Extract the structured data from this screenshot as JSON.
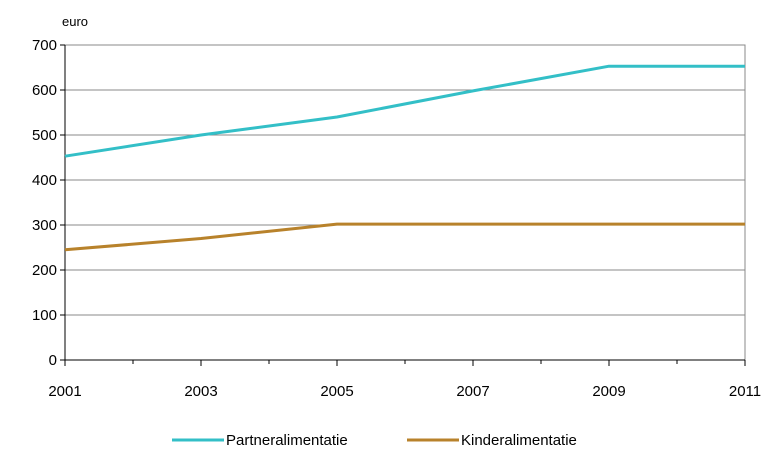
{
  "chart_data": {
    "type": "line",
    "ylabel": "euro",
    "xlim": [
      2001,
      2011
    ],
    "ylim": [
      0,
      700
    ],
    "x_ticks": [
      2001,
      2003,
      2005,
      2007,
      2009,
      2011
    ],
    "y_ticks": [
      0,
      100,
      200,
      300,
      400,
      500,
      600,
      700
    ],
    "grid": "horizontal",
    "legend_position": "bottom",
    "series": [
      {
        "name": "Partneralimentatie",
        "color": "#33BFC7",
        "x": [
          2001,
          2003,
          2005,
          2007,
          2009,
          2011
        ],
        "y": [
          453,
          500,
          540,
          598,
          653,
          653
        ]
      },
      {
        "name": "Kinderalimentatie",
        "color": "#B8822B",
        "x": [
          2001,
          2003,
          2005,
          2007,
          2009,
          2011
        ],
        "y": [
          245,
          270,
          302,
          302,
          302,
          302
        ]
      }
    ]
  }
}
